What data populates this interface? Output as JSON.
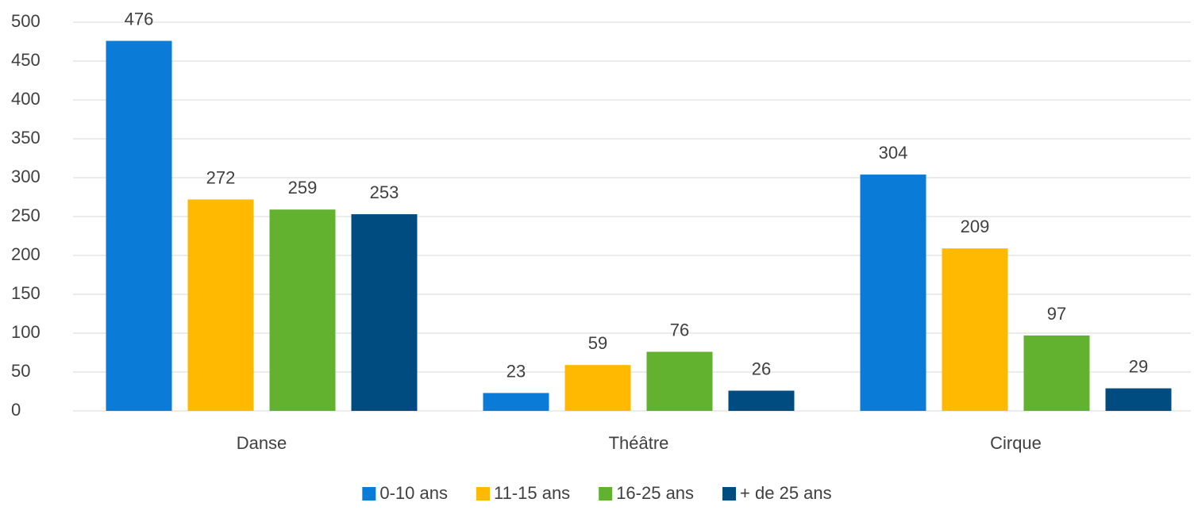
{
  "chart_data": {
    "type": "bar",
    "categories": [
      "Danse",
      "Théâtre",
      "Cirque"
    ],
    "series": [
      {
        "name": "0-10 ans",
        "color": "#0a7bd6",
        "values": [
          476,
          23,
          304
        ]
      },
      {
        "name": "11-15 ans",
        "color": "#ffb900",
        "values": [
          272,
          59,
          209
        ]
      },
      {
        "name": "16-25 ans",
        "color": "#62b22f",
        "values": [
          259,
          76,
          97
        ]
      },
      {
        "name": "+ de 25 ans",
        "color": "#004b7f",
        "values": [
          253,
          26,
          29
        ]
      }
    ],
    "ylim": [
      0,
      500
    ],
    "yticks": [
      0,
      50,
      100,
      150,
      200,
      250,
      300,
      350,
      400,
      450,
      500
    ],
    "grid": true,
    "legend": "bottom"
  }
}
